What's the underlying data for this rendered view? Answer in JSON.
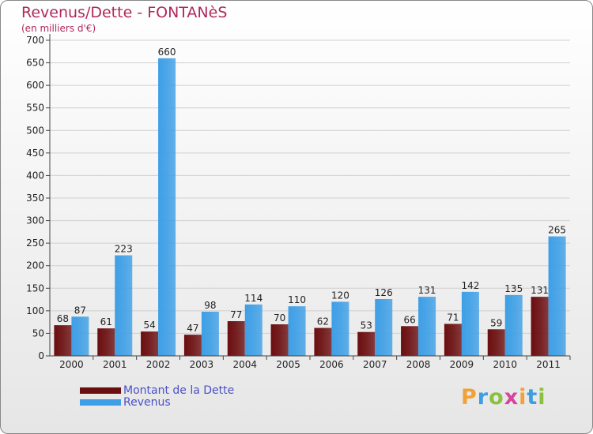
{
  "title": "Revenus/Dette - FONTANèS",
  "unit": "(en milliers d'€)",
  "logo": {
    "text": "Proxiti",
    "letter_colors": [
      "#f0a23a",
      "#3f9ee0",
      "#8cc03f",
      "#d8449c",
      "#f0a23a",
      "#3f9ee0",
      "#8cc03f"
    ]
  },
  "colors": {
    "dette": "#6b0e10",
    "revenus": "#3e9fe6",
    "grid": "#d0d0d0"
  },
  "chart_data": {
    "type": "bar",
    "title": "Revenus/Dette - FONTANèS",
    "subtitle": "(en milliers d'€)",
    "categories": [
      "2000",
      "2001",
      "2002",
      "2003",
      "2004",
      "2005",
      "2006",
      "2007",
      "2008",
      "2009",
      "2010",
      "2011"
    ],
    "series": [
      {
        "name": "Montant de la Dette",
        "values": [
          68,
          61,
          54,
          47,
          77,
          70,
          62,
          53,
          66,
          71,
          59,
          131
        ]
      },
      {
        "name": "Revenus",
        "values": [
          87,
          223,
          660,
          98,
          114,
          110,
          120,
          126,
          131,
          142,
          135,
          265
        ]
      }
    ],
    "ylim": [
      0,
      700
    ],
    "yticks": [
      0,
      50,
      100,
      150,
      200,
      250,
      300,
      350,
      400,
      450,
      500,
      550,
      600,
      650,
      700
    ],
    "grid": true,
    "legend": "bottom-left"
  }
}
